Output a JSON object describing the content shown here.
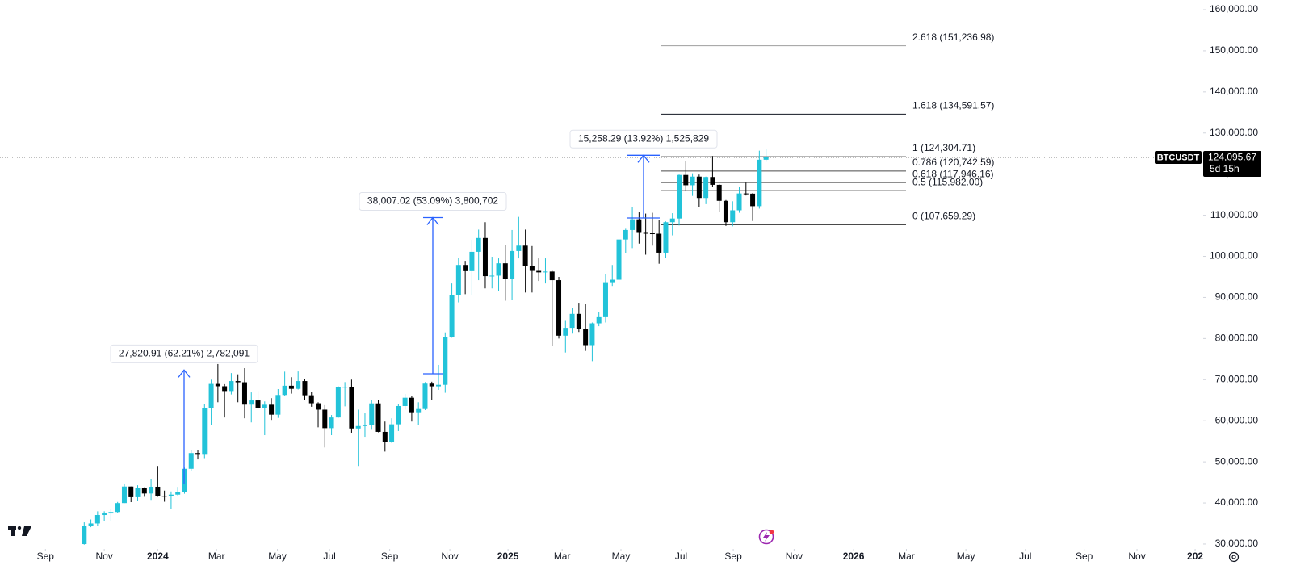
{
  "chart_data": {
    "type": "candlestick",
    "symbol": "BTCUSDT",
    "last_price": {
      "value": 124095.67,
      "label": "124,095.67"
    },
    "countdown": "5d 15h",
    "up_color": "#22c3d9",
    "down_color": "#000000",
    "arrow_color": "#2962ff",
    "x": [
      -11,
      -10,
      -9,
      -8,
      -7,
      -6,
      -5,
      -4,
      -3,
      -2,
      -1,
      0,
      1,
      2,
      3,
      4,
      5,
      6,
      7,
      8,
      9,
      10,
      11,
      12,
      13,
      14,
      15,
      16,
      17,
      18,
      19,
      20,
      21,
      22,
      23,
      24,
      25,
      26,
      27,
      28,
      29,
      30,
      31,
      32,
      33,
      34,
      35,
      36,
      37,
      38,
      39,
      40,
      41,
      42,
      43,
      44,
      45,
      46,
      47,
      48,
      49,
      50,
      51,
      52,
      53,
      54,
      55,
      56,
      57,
      58,
      59,
      60,
      61,
      62,
      63,
      64,
      65,
      66,
      67,
      68,
      69,
      70,
      71,
      72,
      73,
      74,
      75,
      76,
      77,
      78,
      79,
      80,
      81,
      82,
      83,
      84,
      85,
      86,
      87,
      88,
      89,
      90,
      91
    ],
    "open": [
      29990,
      34500,
      35010,
      37060,
      37450,
      37800,
      39970,
      43990,
      41400,
      43600,
      42300,
      43940,
      41730,
      41580,
      42030,
      42580,
      48300,
      52140,
      51730,
      63110,
      68960,
      68390,
      67230,
      69650,
      69360,
      63920,
      64940,
      63110,
      63900,
      61480,
      66270,
      68510,
      67760,
      69650,
      66200,
      64250,
      62700,
      58200,
      60800,
      68160,
      68250,
      58120,
      58710,
      58970,
      64220,
      57300,
      54840,
      59130,
      63580,
      65600,
      62070,
      62850,
      69030,
      68370,
      68740,
      80430,
      90600,
      97900,
      96400,
      101100,
      104460,
      95180,
      95300,
      98300,
      94500,
      101300,
      102600,
      97700,
      96460,
      96100,
      96300,
      94200,
      80700,
      82600,
      86000,
      82300,
      78400,
      83700,
      85200,
      93700,
      94300,
      104100,
      106400,
      109000,
      105700,
      105600,
      105500,
      100900,
      108300,
      109200,
      119800,
      117300,
      119400,
      114200,
      119300,
      117400,
      113500,
      108300,
      111200,
      115300,
      115250,
      112200,
      123500
    ],
    "high": [
      35280,
      35980,
      37970,
      37980,
      38420,
      40250,
      44730,
      43990,
      44300,
      43800,
      45900,
      49000,
      43000,
      42800,
      43900,
      48600,
      52800,
      52950,
      64000,
      69990,
      73800,
      68900,
      71600,
      71300,
      72800,
      66900,
      67200,
      64700,
      65500,
      67700,
      71950,
      70600,
      72000,
      70200,
      66950,
      64500,
      63800,
      61400,
      68400,
      69400,
      70000,
      62700,
      61800,
      65000,
      64950,
      59800,
      60600,
      64100,
      66500,
      66000,
      64500,
      69400,
      69500,
      73600,
      81500,
      93400,
      99600,
      98900,
      104000,
      106500,
      108300,
      99900,
      99500,
      102700,
      106400,
      109600,
      106500,
      102500,
      99500,
      99500,
      96500,
      95000,
      84300,
      87400,
      88700,
      88500,
      83900,
      86400,
      95700,
      97900,
      104100,
      106700,
      111900,
      110700,
      110400,
      110600,
      108900,
      108500,
      110500,
      119900,
      123200,
      120200,
      119900,
      119400,
      124400,
      117600,
      113700,
      113400,
      116800,
      117900,
      115400,
      125700,
      126200
    ],
    "low": [
      29850,
      34100,
      34500,
      35500,
      35700,
      37500,
      39970,
      40200,
      40500,
      41500,
      40750,
      41500,
      40300,
      38500,
      41800,
      42250,
      47700,
      50600,
      50900,
      59000,
      64500,
      60800,
      66400,
      64500,
      60600,
      59600,
      62800,
      56500,
      60200,
      60700,
      66000,
      66600,
      67600,
      65000,
      63400,
      58400,
      53500,
      56500,
      60700,
      63500,
      57100,
      49000,
      56100,
      57800,
      57200,
      52500,
      54600,
      57500,
      62700,
      59800,
      58900,
      62600,
      65100,
      67500,
      66800,
      80200,
      88800,
      90800,
      90500,
      94200,
      92200,
      92200,
      91500,
      89200,
      89300,
      99500,
      91200,
      91200,
      94000,
      93400,
      78200,
      80000,
      76600,
      81200,
      81600,
      77000,
      74500,
      83000,
      83900,
      92800,
      93300,
      100700,
      102000,
      103100,
      100400,
      102600,
      98200,
      99600,
      105100,
      107500,
      115800,
      114700,
      112000,
      112700,
      116800,
      110800,
      107400,
      107300,
      110600,
      114800,
      108600,
      111600,
      123000
    ],
    "close": [
      34500,
      35010,
      37060,
      37450,
      37800,
      39970,
      43990,
      41400,
      43600,
      42300,
      43940,
      41730,
      41580,
      42030,
      42580,
      48300,
      52140,
      51730,
      63110,
      68960,
      68390,
      67230,
      69650,
      69360,
      63920,
      64940,
      63110,
      63900,
      61480,
      66270,
      68510,
      67760,
      69650,
      66200,
      64250,
      62700,
      58200,
      60800,
      68160,
      68250,
      58120,
      58710,
      58970,
      64220,
      57300,
      54840,
      59130,
      63580,
      65600,
      62070,
      62850,
      69030,
      68370,
      68740,
      80430,
      90600,
      97900,
      96400,
      101100,
      104460,
      95180,
      95300,
      98300,
      94500,
      101300,
      102600,
      97700,
      96460,
      96100,
      96300,
      94200,
      80700,
      82600,
      86000,
      82300,
      78400,
      83700,
      85200,
      93700,
      94300,
      104100,
      106400,
      109000,
      105700,
      105600,
      105500,
      100900,
      108300,
      109200,
      119800,
      117300,
      119400,
      114200,
      119300,
      117400,
      113500,
      108300,
      111200,
      115300,
      115250,
      112200,
      123500,
      124095.67
    ],
    "xlim": [
      -23.6,
      156.4
    ],
    "xticks": [
      {
        "value": -16.8,
        "label": "Sep"
      },
      {
        "value": -8.0,
        "label": "Nov"
      },
      {
        "value": 0,
        "label": "2024"
      },
      {
        "value": 8.8,
        "label": "Mar"
      },
      {
        "value": 17.9,
        "label": "May"
      },
      {
        "value": 25.7,
        "label": "Jul"
      },
      {
        "value": 34.7,
        "label": "Sep"
      },
      {
        "value": 43.7,
        "label": "Nov"
      },
      {
        "value": 52.4,
        "label": "2025"
      },
      {
        "value": 60.5,
        "label": "Mar"
      },
      {
        "value": 69.3,
        "label": "May"
      },
      {
        "value": 78.3,
        "label": "Jul"
      },
      {
        "value": 86.1,
        "label": "Sep"
      },
      {
        "value": 95.2,
        "label": "Nov"
      },
      {
        "value": 104.1,
        "label": "2026"
      },
      {
        "value": 112.0,
        "label": "Mar"
      },
      {
        "value": 120.9,
        "label": "May"
      },
      {
        "value": 129.8,
        "label": "Jul"
      },
      {
        "value": 138.6,
        "label": "Sep"
      },
      {
        "value": 146.5,
        "label": "Nov"
      },
      {
        "value": 155.2,
        "label": "202"
      }
    ],
    "ylim": [
      28815,
      162357
    ],
    "yticks": [
      {
        "value": 30000,
        "label": "30,000.00"
      },
      {
        "value": 40000,
        "label": "40,000.00"
      },
      {
        "value": 50000,
        "label": "50,000.00"
      },
      {
        "value": 60000,
        "label": "60,000.00"
      },
      {
        "value": 70000,
        "label": "70,000.00"
      },
      {
        "value": 80000,
        "label": "80,000.00"
      },
      {
        "value": 90000,
        "label": "90,000.00"
      },
      {
        "value": 100000,
        "label": "100,000.00"
      },
      {
        "value": 110000,
        "label": "110,000.00"
      },
      {
        "value": 120000,
        "label": "120,000.00"
      },
      {
        "value": 130000,
        "label": "130,000.00"
      },
      {
        "value": 140000,
        "label": "140,000.00"
      },
      {
        "value": 150000,
        "label": "150,000.00"
      },
      {
        "value": 160000,
        "label": "160,000.00"
      }
    ],
    "fib_levels": [
      {
        "value": 151236.98,
        "label": "2.618 (151,236.98)",
        "color": "#9e9e9e"
      },
      {
        "value": 134591.57,
        "label": "1.618 (134,591.57)",
        "color": "#131722"
      },
      {
        "value": 124304.71,
        "label": "1 (124,304.71)",
        "color": "#9e9e9e"
      },
      {
        "value": 120742.59,
        "label": "0.786 (120,742.59)",
        "color": "#4a4a4a"
      },
      {
        "value": 117946.16,
        "label": "0.618 (117,946.16)",
        "color": "#4a4a4a"
      },
      {
        "value": 115982.0,
        "label": "0.5 (115,982.00)",
        "color": "#4a4a4a"
      },
      {
        "value": 107659.29,
        "label": "0 (107,659.29)",
        "color": "#4a4a4a"
      }
    ],
    "measures": [
      {
        "start": 44525,
        "change": 27820.91,
        "label": "27,820.91 (62.21%) 2,782,091"
      },
      {
        "start": 71430,
        "change": 38007.02,
        "label": "38,007.02 (53.09%) 3,800,702"
      },
      {
        "start": 109333,
        "change": 15258.29,
        "label": "15,258.29 (13.92%) 1,525,829"
      }
    ]
  }
}
